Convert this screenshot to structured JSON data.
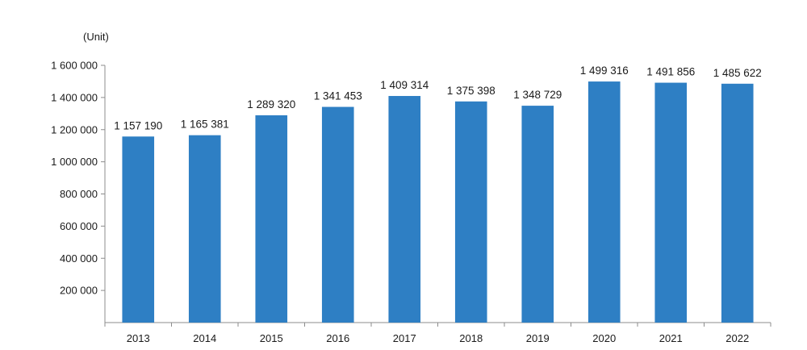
{
  "chart_data": {
    "type": "bar",
    "unit_label": "(Unit)",
    "categories": [
      "2013",
      "2014",
      "2015",
      "2016",
      "2017",
      "2018",
      "2019",
      "2020",
      "2021",
      "2022"
    ],
    "values": [
      1157190,
      1165381,
      1289320,
      1341453,
      1409314,
      1375398,
      1348729,
      1499316,
      1491856,
      1485622
    ],
    "value_labels": [
      "1 157 190",
      "1 165 381",
      "1 289 320",
      "1 341 453",
      "1 409 314",
      "1 375 398",
      "1 348 729",
      "1 499 316",
      "1 491 856",
      "1 485 622"
    ],
    "y_ticks": [
      200000,
      400000,
      600000,
      800000,
      1000000,
      1200000,
      1400000,
      1600000
    ],
    "y_tick_labels": [
      "200 000",
      "400 000",
      "600 000",
      "800 000",
      "1 000 000",
      "1 200 000",
      "1 400 000",
      "1 600 000"
    ],
    "ylim": [
      0,
      1600000
    ],
    "grid": false,
    "legend": "none",
    "bar_color": "#2e7fc4"
  }
}
